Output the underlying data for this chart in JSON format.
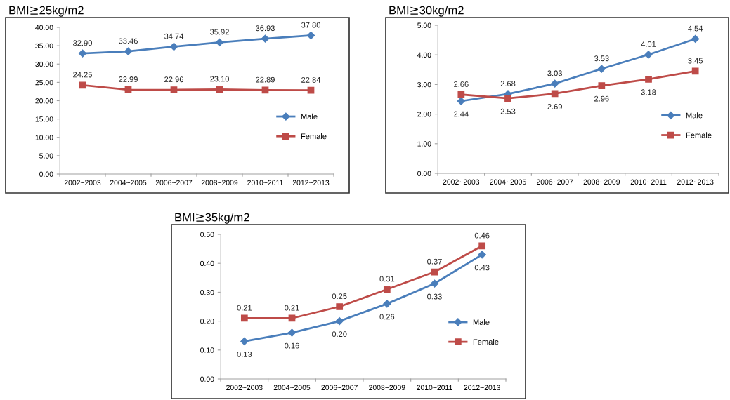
{
  "chart_data": [
    {
      "type": "line",
      "title": "BMI≧25kg/m2",
      "categories": [
        "2002~2003",
        "2004~2005",
        "2006~2007",
        "2008~2009",
        "2010~2011",
        "2012~2013"
      ],
      "series": [
        {
          "name": "Male",
          "color": "#4a7ebb",
          "marker": "diamond",
          "values": [
            32.9,
            33.46,
            34.74,
            35.92,
            36.93,
            37.8
          ],
          "value_labels": [
            "32.90",
            "33.46",
            "34.74",
            "35.92",
            "36.93",
            "37.80"
          ]
        },
        {
          "name": "Female",
          "color": "#be4b48",
          "marker": "square",
          "values": [
            24.25,
            22.99,
            22.96,
            23.1,
            22.89,
            22.84
          ],
          "value_labels": [
            "24.25",
            "22.99",
            "22.96",
            "23.10",
            "22.89",
            "22.84"
          ]
        }
      ],
      "ylim": [
        0,
        40
      ],
      "yticks": [
        {
          "value": 0,
          "label": "0.00"
        },
        {
          "value": 5,
          "label": "5.00"
        },
        {
          "value": 10,
          "label": "10.00"
        },
        {
          "value": 15,
          "label": "15.00"
        },
        {
          "value": 20,
          "label": "20.00"
        },
        {
          "value": 25,
          "label": "25.00"
        },
        {
          "value": 30,
          "label": "30.00"
        },
        {
          "value": 35,
          "label": "35.00"
        },
        {
          "value": 40,
          "label": "40.00"
        }
      ],
      "grid": false,
      "legend": "right"
    },
    {
      "type": "line",
      "title": "BMI≧30kg/m2",
      "categories": [
        "2002~2003",
        "2004~2005",
        "2006~2007",
        "2008~2009",
        "2010~2011",
        "2012~2013"
      ],
      "series": [
        {
          "name": "Male",
          "color": "#4a7ebb",
          "marker": "diamond",
          "values": [
            2.44,
            2.68,
            3.03,
            3.53,
            4.01,
            4.54
          ],
          "value_labels": [
            "2.44",
            "2.68",
            "3.03",
            "3.53",
            "4.01",
            "4.54"
          ]
        },
        {
          "name": "Female",
          "color": "#be4b48",
          "marker": "square",
          "values": [
            2.66,
            2.53,
            2.69,
            2.96,
            3.18,
            3.45
          ],
          "value_labels": [
            "2.66",
            "2.53",
            "2.69",
            "2.96",
            "3.18",
            "3.45"
          ]
        }
      ],
      "ylim": [
        0,
        5
      ],
      "yticks": [
        {
          "value": 0,
          "label": "0.00"
        },
        {
          "value": 1,
          "label": "1.00"
        },
        {
          "value": 2,
          "label": "2.00"
        },
        {
          "value": 3,
          "label": "3.00"
        },
        {
          "value": 4,
          "label": "4.00"
        },
        {
          "value": 5,
          "label": "5.00"
        }
      ],
      "grid": false,
      "legend": "right"
    },
    {
      "type": "line",
      "title": "BMI≧35kg/m2",
      "categories": [
        "2002~2003",
        "2004~2005",
        "2006~2007",
        "2008~2009",
        "2010~2011",
        "2012~2013"
      ],
      "series": [
        {
          "name": "Male",
          "color": "#4a7ebb",
          "marker": "diamond",
          "values": [
            0.13,
            0.16,
            0.2,
            0.26,
            0.33,
            0.43
          ],
          "value_labels": [
            "0.13",
            "0.16",
            "0.20",
            "0.26",
            "0.33",
            "0.43"
          ]
        },
        {
          "name": "Female",
          "color": "#be4b48",
          "marker": "square",
          "values": [
            0.21,
            0.21,
            0.25,
            0.31,
            0.37,
            0.46
          ],
          "value_labels": [
            "0.21",
            "0.21",
            "0.25",
            "0.31",
            "0.37",
            "0.46"
          ]
        }
      ],
      "ylim": [
        0,
        0.5
      ],
      "yticks": [
        {
          "value": 0,
          "label": "0.00"
        },
        {
          "value": 0.1,
          "label": "0.10"
        },
        {
          "value": 0.2,
          "label": "0.20"
        },
        {
          "value": 0.3,
          "label": "0.30"
        },
        {
          "value": 0.4,
          "label": "0.40"
        },
        {
          "value": 0.5,
          "label": "0.50"
        }
      ],
      "grid": false,
      "legend": "right"
    }
  ]
}
